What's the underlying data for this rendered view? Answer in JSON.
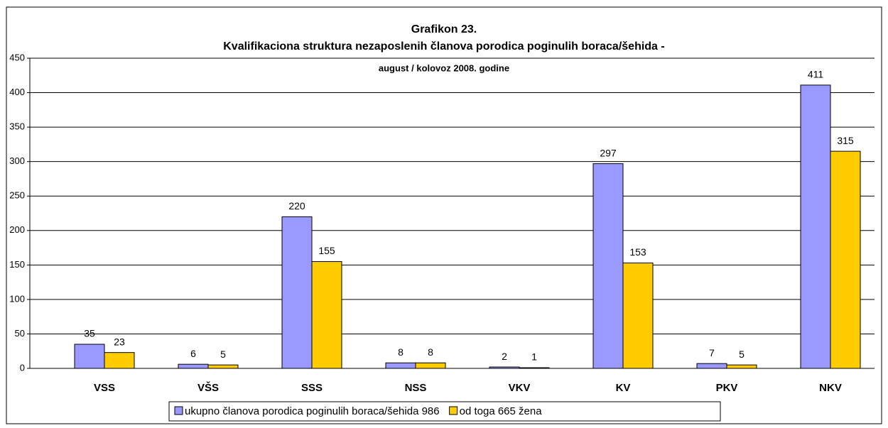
{
  "chart_data": {
    "type": "bar",
    "title": "Grafikon 23.",
    "subtitle": "Kvalifikaciona struktura nezaposlenih članova porodica poginulih boraca/šehida  -",
    "note": "august / kolovoz  2008. godine",
    "categories": [
      "VSS",
      "VŠS",
      "SSS",
      "NSS",
      "VKV",
      "KV",
      "PKV",
      "NKV"
    ],
    "series": [
      {
        "name": "ukupno članova porodica poginulih boraca/šehida 986",
        "color": "#9999ff",
        "values": [
          35,
          6,
          220,
          8,
          2,
          297,
          7,
          411
        ]
      },
      {
        "name": "od toga 665 žena",
        "color": "#ffcc00",
        "values": [
          23,
          5,
          155,
          8,
          1,
          153,
          5,
          315
        ]
      }
    ],
    "ylim": [
      0,
      450
    ],
    "yticks": [
      0,
      50,
      100,
      150,
      200,
      250,
      300,
      350,
      400,
      450
    ],
    "grid": true,
    "legend": "bottom"
  }
}
